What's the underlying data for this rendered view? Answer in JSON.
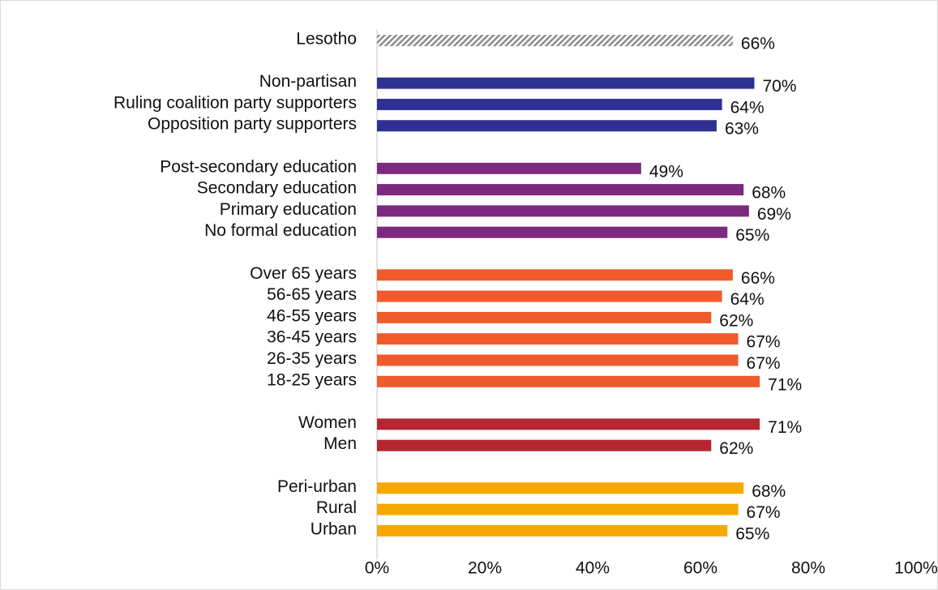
{
  "chart_data": {
    "type": "bar",
    "orientation": "horizontal",
    "categories": [
      "Lesotho",
      "Non-partisan",
      "Ruling coalition party supporters",
      "Opposition party supporters",
      "Post-secondary education",
      "Secondary education",
      "Primary education",
      "No formal education",
      "Over 65 years",
      "56-65 years",
      "46-55 years",
      "36-45 years",
      "26-35 years",
      "18-25 years",
      "Women",
      "Men",
      "Peri-urban",
      "Rural",
      "Urban"
    ],
    "values": [
      66,
      70,
      64,
      63,
      49,
      68,
      69,
      65,
      66,
      64,
      62,
      67,
      67,
      71,
      71,
      62,
      68,
      67,
      65
    ],
    "value_labels": [
      "66%",
      "70%",
      "64%",
      "63%",
      "49%",
      "68%",
      "69%",
      "65%",
      "66%",
      "64%",
      "62%",
      "67%",
      "67%",
      "71%",
      "71%",
      "62%",
      "68%",
      "67%",
      "65%"
    ],
    "colors": [
      "#8c8c8c",
      "#2e3192",
      "#2e3192",
      "#2e3192",
      "#7b2a7f",
      "#7b2a7f",
      "#7b2a7f",
      "#7b2a7f",
      "#f15a2b",
      "#f15a2b",
      "#f15a2b",
      "#f15a2b",
      "#f15a2b",
      "#f15a2b",
      "#b5262f",
      "#b5262f",
      "#f7a800",
      "#f7a800",
      "#f7a800"
    ],
    "fills": [
      "hatched",
      "solid",
      "solid",
      "solid",
      "solid",
      "solid",
      "solid",
      "solid",
      "solid",
      "solid",
      "solid",
      "solid",
      "solid",
      "solid",
      "solid",
      "solid",
      "solid",
      "solid",
      "solid"
    ],
    "xlim": [
      0,
      100
    ],
    "xticks": [
      {
        "value": 0,
        "label": "0%"
      },
      {
        "value": 20,
        "label": "20%"
      },
      {
        "value": 40,
        "label": "40%"
      },
      {
        "value": 60,
        "label": "60%"
      },
      {
        "value": 80,
        "label": "80%"
      },
      {
        "value": 100,
        "label": "100%"
      }
    ],
    "grid": false
  }
}
